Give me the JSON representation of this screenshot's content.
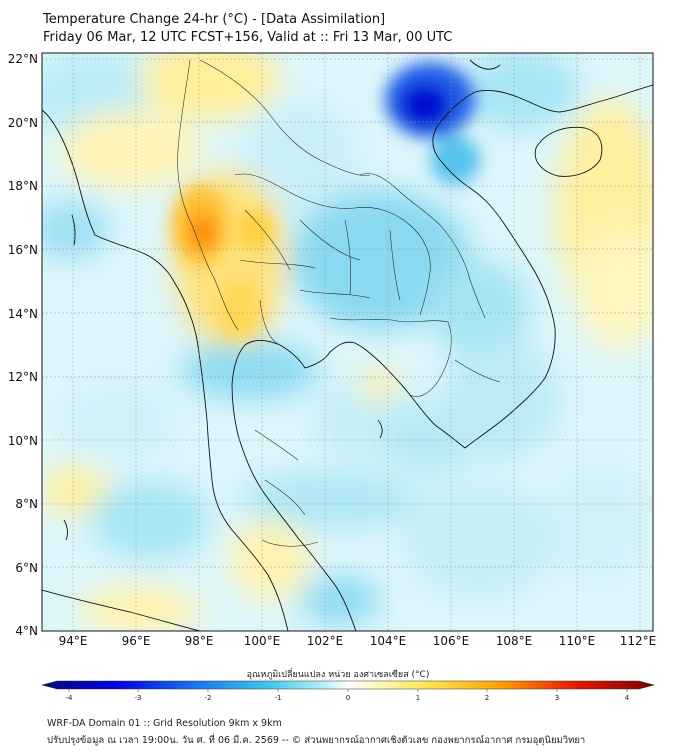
{
  "header": {
    "title": "Temperature Change 24-hr (°C) - [Data Assimilation]",
    "subtitle": "Friday 06 Mar, 12 UTC FCST+156, Valid at :: Fri 13 Mar, 00 UTC"
  },
  "map": {
    "lon_range": [
      93,
      112.5
    ],
    "lat_range": [
      4,
      22.2
    ],
    "lon_ticks": [
      "94°E",
      "96°E",
      "98°E",
      "100°E",
      "102°E",
      "104°E",
      "106°E",
      "108°E",
      "110°E",
      "112°E"
    ],
    "lat_ticks": [
      "22°N",
      "20°N",
      "18°N",
      "16°N",
      "14°N",
      "12°N",
      "10°N",
      "8°N",
      "6°N",
      "4°N"
    ],
    "grid": true
  },
  "colorbar": {
    "title": "อุณหภูมิเปลี่ยนแปลง หน่วย องศาเซลเซียส (°C)",
    "ticks": [
      "-4",
      "-3",
      "-2",
      "-1",
      "0",
      "1",
      "2",
      "3",
      "4"
    ],
    "range": [
      -4,
      4
    ]
  },
  "footer": {
    "line1": "WRF-DA Domain 01 :: Grid Resolution 9km x 9km",
    "line2": "ปรับปรุงข้อมูล ณ เวลา 19:00น. วัน ศ. ที่ 06 มี.ค. 2569 -- © ส่วนพยากรณ์อากาศเชิงตัวเลข กองพยากรณ์อากาศ กรมอุตุนิยมวิทยา"
  }
}
